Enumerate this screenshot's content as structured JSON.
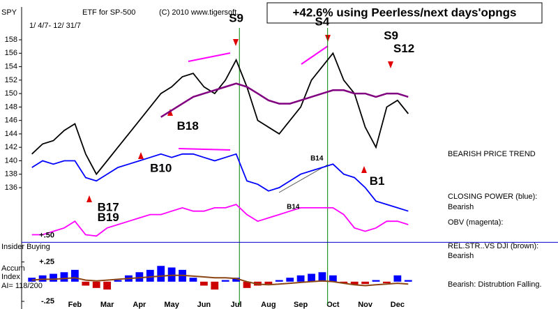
{
  "chart_data": {
    "type": "line",
    "ticker": "SPY",
    "title": "ETF for SP-500",
    "copyright": "(C) 2010 www.tigersoft.",
    "headline": "+42.6% using Peerless/next days'opngs",
    "date_range": "1/ 4/7- 12/ 31/7",
    "categories": [
      null,
      null,
      null,
      null,
      "Feb",
      null,
      null,
      "Mar",
      null,
      null,
      "Apr",
      null,
      null,
      "May",
      null,
      null,
      "Jun",
      null,
      null,
      "Jul",
      null,
      null,
      "Aug",
      null,
      null,
      "Sep",
      null,
      null,
      "Oct",
      null,
      null,
      "Nov",
      null,
      null,
      "Dec",
      null
    ],
    "ylim": [
      128,
      162
    ],
    "yticks": [
      136,
      138,
      140,
      142,
      144,
      146,
      148,
      150,
      152,
      154,
      156,
      158
    ],
    "series": [
      {
        "color": "#000000",
        "values": [
          141,
          142.5,
          143,
          144.5,
          145.5,
          141,
          138,
          140,
          142,
          144,
          146,
          148,
          150,
          151,
          152.5,
          153,
          151,
          150,
          152,
          155,
          151,
          146,
          145,
          144,
          146,
          148,
          152,
          154,
          156,
          152,
          150,
          145,
          142,
          148,
          149,
          147
        ]
      },
      {
        "color": "#800080",
        "values": [
          null,
          null,
          null,
          null,
          null,
          null,
          null,
          null,
          null,
          null,
          null,
          null,
          146.5,
          147.5,
          148.5,
          149.5,
          150,
          150.5,
          151,
          151.5,
          151,
          150,
          149,
          148.5,
          148.5,
          149,
          149.5,
          150,
          150.5,
          150.5,
          150,
          150,
          149.5,
          150,
          150,
          149.5
        ]
      },
      {
        "name": "CLOSING POWER (blue):",
        "status": "Bearish",
        "color": "#0000ff",
        "values": [
          139,
          140,
          139.5,
          140,
          140,
          137.5,
          137,
          138,
          139,
          139.5,
          140,
          140.5,
          141,
          140.5,
          141,
          141,
          140.5,
          140,
          140.5,
          141,
          137,
          136.5,
          135.5,
          136,
          137,
          138,
          138.5,
          139,
          139.5,
          138,
          137.5,
          136,
          134,
          133.5,
          133,
          132.5
        ]
      },
      {
        "name": "OBV (magenta):",
        "color": "#ff00ff",
        "values": [
          129,
          129,
          129.5,
          130,
          131,
          129,
          128.8,
          130,
          130.5,
          131,
          131.5,
          132,
          132,
          132.5,
          133,
          132.5,
          132.5,
          133,
          133,
          133.5,
          132,
          131,
          131.5,
          132,
          132.5,
          133,
          133,
          133,
          133,
          132,
          130,
          129.5,
          130,
          131,
          131,
          130.5
        ]
      }
    ],
    "annotations": [
      {
        "text": "S9",
        "at": 19,
        "y": 161.1
      },
      {
        "text": "S4",
        "at": 27,
        "y": 160.6
      },
      {
        "text": "S9",
        "at": 33.4,
        "y": 158.5
      },
      {
        "text": "S12",
        "at": 34.6,
        "y": 156.6
      },
      {
        "text": "B18",
        "at": 14.5,
        "y": 145.1
      },
      {
        "text": "B10",
        "at": 12,
        "y": 138.8
      },
      {
        "text": "B17",
        "at": 7.1,
        "y": 133
      },
      {
        "text": "B19",
        "at": 7.1,
        "y": 131.5
      },
      {
        "text": "B14",
        "at": 26.5,
        "y": 140.3
      },
      {
        "text": "B14",
        "at": 24.3,
        "y": 133.1
      },
      {
        "text": "B1",
        "at": 32.1,
        "y": 136.9
      }
    ],
    "signal_lines": [
      19.3,
      27.5
    ],
    "trend": "BEARISH PRICE TREND",
    "lower_panel": {
      "type": "bar",
      "insider_label": "Insider Buying",
      "labels": [
        "Accum",
        "Index",
        "AI= 118/200"
      ],
      "ylim": [
        -0.3,
        0.55
      ],
      "yticks": [
        {
          "value": 0.5,
          "label": "+.50"
        },
        {
          "value": 0.25,
          "label": "+.25"
        },
        {
          "value": -0.25,
          "label": "-.25"
        }
      ],
      "values": [
        0.05,
        0.08,
        0.1,
        0.12,
        0.15,
        -0.05,
        -0.08,
        -0.1,
        0.02,
        0.08,
        0.12,
        0.15,
        0.2,
        0.18,
        0.15,
        0.05,
        -0.05,
        -0.1,
        0.02,
        0.05,
        -0.08,
        -0.05,
        -0.03,
        0.02,
        0.05,
        0.08,
        0.1,
        0.12,
        0.08,
        -0.02,
        -0.04,
        -0.03,
        0.02,
        -0.02,
        0.08,
        0.02
      ],
      "colors": {
        "positive": "#0000ff",
        "negative": "#cc0000"
      },
      "series": [
        {
          "name": "REL.STR..VS DJI (brown):",
          "status": "Bearish",
          "color": "#8b4513",
          "values": [
            0.02,
            0.03,
            0.03,
            0.04,
            0.05,
            0.02,
            0.01,
            0.02,
            0.03,
            0.04,
            0.05,
            0.06,
            0.07,
            0.08,
            0.08,
            0.07,
            0.06,
            0.05,
            0.05,
            0.04,
            0.0,
            -0.03,
            -0.04,
            -0.03,
            -0.02,
            -0.01,
            0.0,
            0.01,
            0.0,
            -0.02,
            -0.04,
            -0.05,
            -0.04,
            -0.03,
            -0.02,
            -0.03
          ]
        }
      ],
      "note": "Bearish: Distrubtion Falling."
    }
  }
}
